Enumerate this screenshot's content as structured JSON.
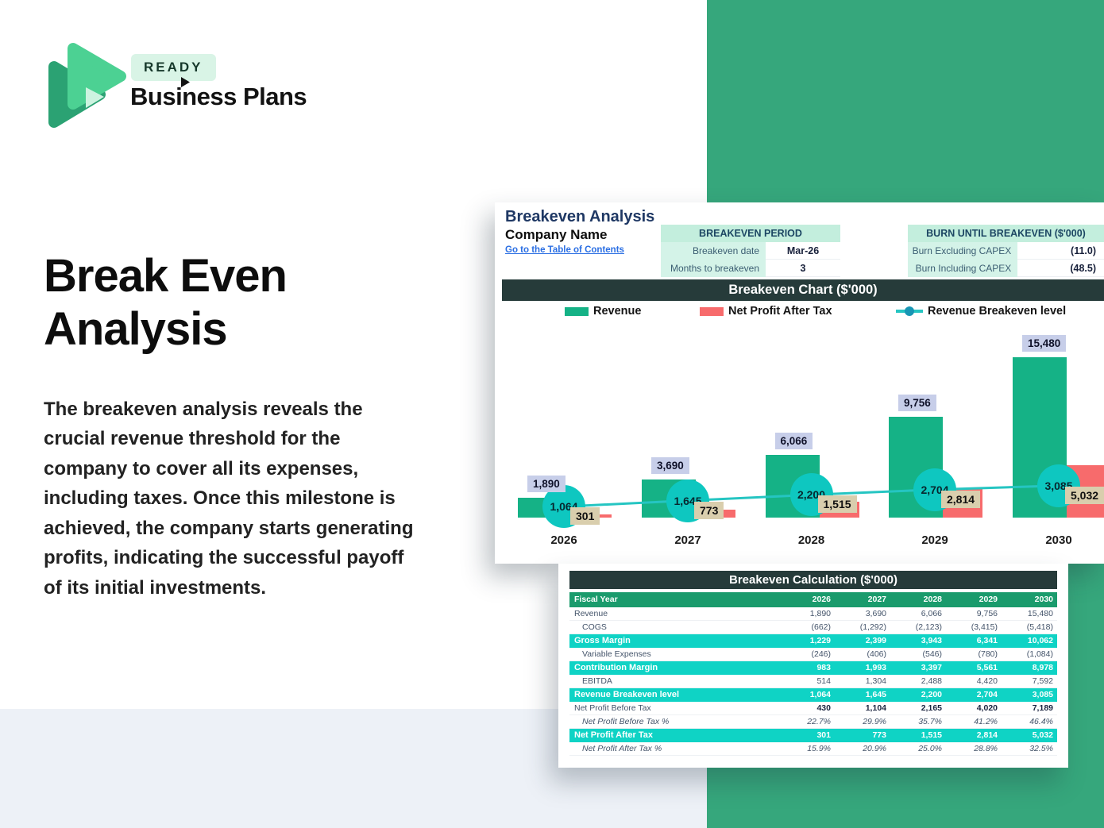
{
  "brand": {
    "badge": "READY",
    "name": "Business Plans"
  },
  "hero": {
    "title_line1": "Break Even",
    "title_line2": "Analysis",
    "description": "The breakeven analysis reveals the crucial revenue threshold for the company to cover all its expenses, including taxes. Once this milestone is achieved, the company starts generating profits, indicating the successful payoff of its initial investments."
  },
  "sheet": {
    "title": "Breakeven Analysis",
    "company": "Company Name",
    "link": "Go to the Table of Contents",
    "period_table": {
      "header": "BREAKEVEN PERIOD",
      "rows": [
        [
          "Breakeven date",
          "Mar-26"
        ],
        [
          "Months to breakeven",
          "3"
        ]
      ]
    },
    "burn_table": {
      "header": "BURN UNTIL BREAKEVEN ($'000)",
      "rows": [
        [
          "Burn Excluding CAPEX",
          "(11.0)"
        ],
        [
          "Burn Including CAPEX",
          "(48.5)"
        ]
      ]
    }
  },
  "chart_data": {
    "type": "bar",
    "title": "Breakeven Chart ($'000)",
    "categories": [
      "2026",
      "2027",
      "2028",
      "2029",
      "2030"
    ],
    "series": [
      {
        "name": "Revenue",
        "type": "bar",
        "color": "#15b286",
        "values": [
          1890,
          3690,
          6066,
          9756,
          15480
        ],
        "labels": [
          "1,890",
          "3,690",
          "6,066",
          "9,756",
          "15,480"
        ]
      },
      {
        "name": "Net Profit After Tax",
        "type": "bar",
        "color": "#f76b6c",
        "values": [
          301,
          773,
          1515,
          2814,
          5032
        ],
        "labels": [
          "301",
          "773",
          "1,515",
          "2,814",
          "5,032"
        ]
      },
      {
        "name": "Revenue Breakeven level",
        "type": "line",
        "color": "#25c5c2",
        "values": [
          1064,
          1645,
          2200,
          2704,
          3085
        ],
        "labels": [
          "1,064",
          "1,645",
          "2,200",
          "2,704",
          "3,085"
        ]
      }
    ],
    "ylim": [
      0,
      15480
    ],
    "legend_position": "top",
    "grid": false
  },
  "calc_table": {
    "title": "Breakeven Calculation ($'000)",
    "header_row": {
      "label": "Fiscal Year",
      "years": [
        "2026",
        "2027",
        "2028",
        "2029",
        "2030"
      ]
    },
    "rows": [
      {
        "label": "Revenue",
        "style": "normal",
        "values": [
          "1,890",
          "3,690",
          "6,066",
          "9,756",
          "15,480"
        ]
      },
      {
        "label": "COGS",
        "style": "sub",
        "values": [
          "(662)",
          "(1,292)",
          "(2,123)",
          "(3,415)",
          "(5,418)"
        ]
      },
      {
        "label": "Gross Margin",
        "style": "highlight",
        "values": [
          "1,229",
          "2,399",
          "3,943",
          "6,341",
          "10,062"
        ]
      },
      {
        "label": "Variable Expenses",
        "style": "sub",
        "values": [
          "(246)",
          "(406)",
          "(546)",
          "(780)",
          "(1,084)"
        ]
      },
      {
        "label": "Contribution Margin",
        "style": "highlight",
        "values": [
          "983",
          "1,993",
          "3,397",
          "5,561",
          "8,978"
        ]
      },
      {
        "label": "EBITDA",
        "style": "sub",
        "values": [
          "514",
          "1,304",
          "2,488",
          "4,420",
          "7,592"
        ]
      },
      {
        "label": "Revenue Breakeven level",
        "style": "highlight",
        "values": [
          "1,064",
          "1,645",
          "2,200",
          "2,704",
          "3,085"
        ]
      },
      {
        "label": "Net Profit Before Tax",
        "style": "bold",
        "values": [
          "430",
          "1,104",
          "2,165",
          "4,020",
          "7,189"
        ]
      },
      {
        "label": "Net Profit Before Tax %",
        "style": "pct",
        "values": [
          "22.7%",
          "29.9%",
          "35.7%",
          "41.2%",
          "46.4%"
        ]
      },
      {
        "label": "Net Profit After Tax",
        "style": "highlight",
        "values": [
          "301",
          "773",
          "1,515",
          "2,814",
          "5,032"
        ]
      },
      {
        "label": "Net Profit After Tax %",
        "style": "pct",
        "values": [
          "15.9%",
          "20.9%",
          "25.0%",
          "28.8%",
          "32.5%"
        ]
      }
    ]
  },
  "colors": {
    "panel_green": "#36a77c",
    "bar_green": "#15b286",
    "bar_red": "#f76b6c",
    "line_teal": "#25c5c2",
    "bubble_teal": "#0ec7c0",
    "header_dark": "#263b3a",
    "table_header_green": "#1a9b6c",
    "table_highlight_cyan": "#0fd3c5",
    "mint_header": "#c3eedd",
    "mint_cell": "#d4f3e8",
    "navy_text": "#1f3864",
    "link_blue": "#2b6fe3",
    "revenue_label_bg": "#c7cee9",
    "net_profit_label_bg": "#d9cead",
    "bottom_strip": "#edf1f7"
  }
}
